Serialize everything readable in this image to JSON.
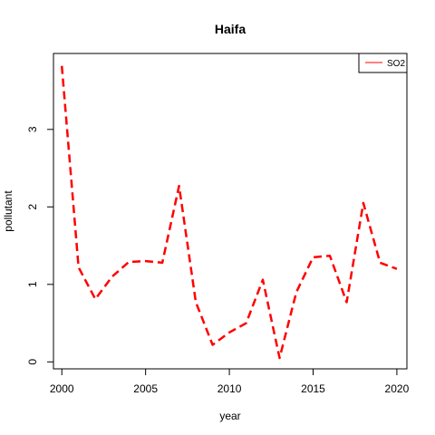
{
  "chart_data": {
    "type": "line",
    "title": "Haifa",
    "xlabel": "year",
    "ylabel": "pollutant",
    "xlim": [
      1999.5,
      2020.6
    ],
    "ylim": [
      -0.09,
      3.98
    ],
    "x_ticks": [
      2000,
      2005,
      2010,
      2015,
      2020
    ],
    "y_ticks": [
      0,
      1,
      2,
      3
    ],
    "grid": false,
    "legend_position": "top-right",
    "series": [
      {
        "name": "SO2",
        "color": "#ff0000",
        "line_style": "dashed",
        "x": [
          2000,
          2001,
          2002,
          2003,
          2004,
          2005,
          2006,
          2007,
          2008,
          2009,
          2010,
          2011,
          2012,
          2013,
          2014,
          2015,
          2016,
          2017,
          2018,
          2019,
          2020
        ],
        "y": [
          3.82,
          1.22,
          0.81,
          1.1,
          1.29,
          1.3,
          1.28,
          2.27,
          0.77,
          0.22,
          0.38,
          0.5,
          1.06,
          0.05,
          0.9,
          1.35,
          1.37,
          0.77,
          2.05,
          1.28,
          1.2
        ]
      }
    ]
  }
}
